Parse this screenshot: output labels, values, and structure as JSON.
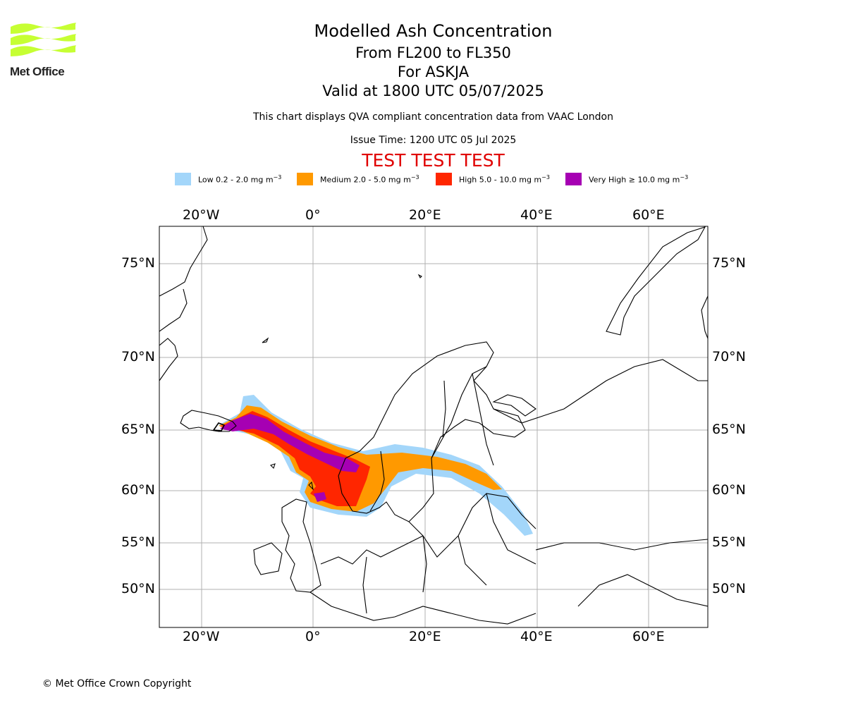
{
  "logo": {
    "text": "Met Office",
    "color": "#c6ff33"
  },
  "header": {
    "title": "Modelled Ash Concentration",
    "flight_levels": "From FL200 to FL350",
    "volcano": "For ASKJA",
    "valid_time": "Valid at 1800 UTC 05/07/2025",
    "note": "This chart displays QVA compliant concentration data from VAAC London",
    "issue_time": "Issue Time: 1200 UTC 05 Jul 2025",
    "test_banner": "TEST TEST TEST"
  },
  "legend": [
    {
      "name": "Low",
      "range": "0.2 - 2.0 mg m",
      "color": "#a3d6fa"
    },
    {
      "name": "Medium",
      "range": "2.0 - 5.0 mg m",
      "color": "#ff9900"
    },
    {
      "name": "High",
      "range": "5.0 - 10.0 mg m",
      "color": "#ff2600"
    },
    {
      "name": "Very High",
      "range": "≥  10.0 mg m",
      "color": "#a600b3"
    }
  ],
  "legend_unit_exponent": "−3",
  "map": {
    "lon_labels": [
      "20°W",
      "0°",
      "20°E",
      "40°E",
      "60°E"
    ],
    "lat_labels": [
      "75°N",
      "70°N",
      "65°N",
      "60°N",
      "55°N",
      "50°N"
    ],
    "lon_values": [
      -20,
      0,
      20,
      40,
      60
    ],
    "lat_values": [
      75,
      70,
      65,
      60,
      55,
      50
    ],
    "lon_range": [
      -27.5,
      70
    ],
    "lat_range": [
      47,
      76
    ]
  },
  "footer": {
    "copyright": "© Met Office Crown Copyright"
  }
}
